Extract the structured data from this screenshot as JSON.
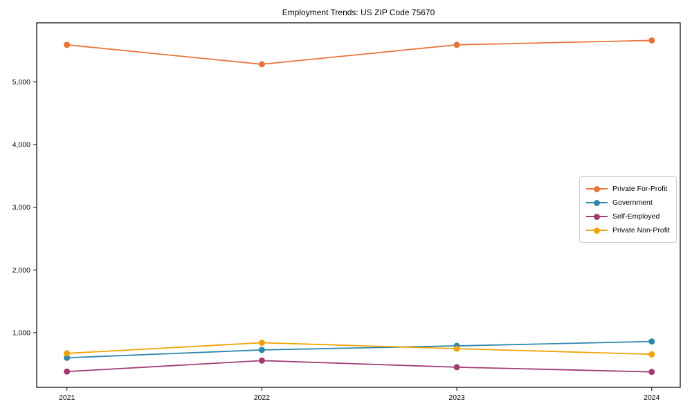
{
  "chart_data": {
    "type": "line",
    "title": "Employment Trends: US ZIP Code 75670",
    "xlabel": "",
    "ylabel": "",
    "x": [
      2021,
      2022,
      2023,
      2024
    ],
    "x_tick_labels": [
      "2021",
      "2022",
      "2023",
      "2024"
    ],
    "y_ticks": [
      1000,
      2000,
      3000,
      4000,
      5000
    ],
    "y_tick_labels": [
      "1,000",
      "2,000",
      "3,000",
      "4,000",
      "5,000"
    ],
    "ylim": [
      130,
      5940
    ],
    "grid": false,
    "legend_position": "center-right",
    "marker": "circle",
    "series": [
      {
        "name": "Private For-Profit",
        "color": "#E8743B",
        "values": [
          5590,
          5280,
          5590,
          5660
        ]
      },
      {
        "name": "Government",
        "color": "#2E86AB",
        "values": [
          600,
          725,
          790,
          860
        ]
      },
      {
        "name": "Self-Employed",
        "color": "#A23B72",
        "values": [
          380,
          555,
          450,
          375
        ]
      },
      {
        "name": "Private Non-Profit",
        "color": "#F0A202",
        "values": [
          670,
          840,
          745,
          655
        ]
      }
    ]
  }
}
